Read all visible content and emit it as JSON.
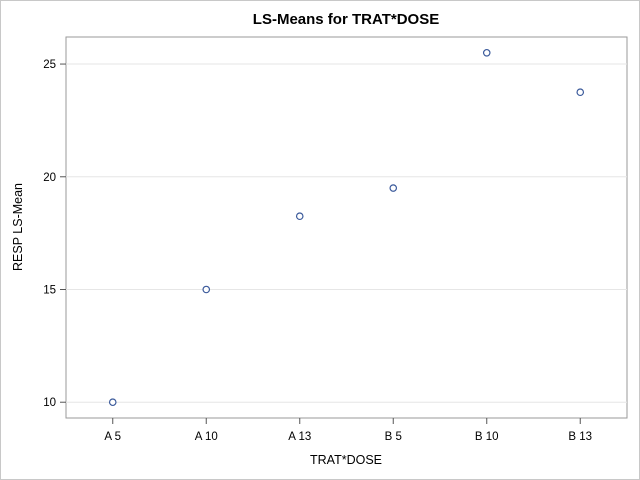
{
  "chart_data": {
    "type": "scatter",
    "title": "LS-Means for TRAT*DOSE",
    "xlabel": "TRAT*DOSE",
    "ylabel": "RESP LS-Mean",
    "categories": [
      "A 5",
      "A 10",
      "A 13",
      "B 5",
      "B 10",
      "B 13"
    ],
    "values": [
      10.0,
      15.0,
      18.25,
      19.5,
      25.5,
      23.75
    ],
    "yticks": [
      10,
      15,
      20,
      25
    ],
    "ylim": [
      9.3,
      26.2
    ],
    "grid": true,
    "legend": "none",
    "marker_color": "#3b5a9b"
  }
}
